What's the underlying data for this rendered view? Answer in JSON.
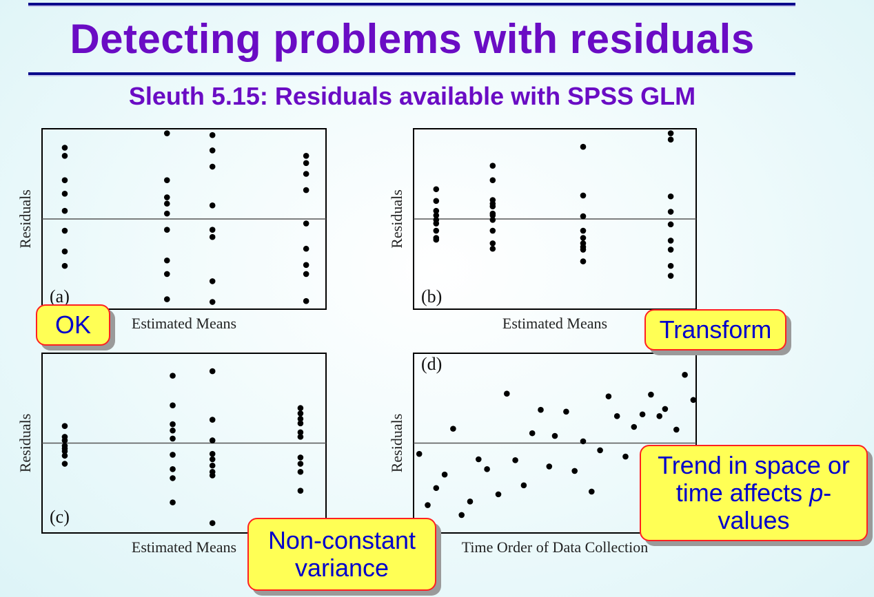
{
  "slide": {
    "title": "Detecting problems with residuals",
    "subtitle": "Sleuth 5.15: Residuals available with SPSS GLM"
  },
  "callouts": {
    "ok": "OK",
    "transform": "Transform",
    "variance_line1": "Non-constant",
    "variance_line2": "variance",
    "trend_line1": "Trend in space or",
    "trend_line2a": "time affects ",
    "trend_line2b": "p",
    "trend_line2c": "-",
    "trend_line3": "values"
  },
  "colors": {
    "title": "#6a0cc4",
    "callout_fill": "#ffff55",
    "callout_border": "#ff2020",
    "callout_text": "#0000cc"
  },
  "chart_data": [
    {
      "type": "scatter",
      "panel": "(a)",
      "xlabel": "Estimated Means",
      "ylabel": "Residuals",
      "xlim": [
        0,
        1
      ],
      "ylim": [
        -1,
        1
      ],
      "reference_line_y": 0,
      "points": [
        [
          0.08,
          0.79
        ],
        [
          0.08,
          0.7
        ],
        [
          0.08,
          0.43
        ],
        [
          0.08,
          0.28
        ],
        [
          0.08,
          0.09
        ],
        [
          0.08,
          -0.13
        ],
        [
          0.08,
          -0.36
        ],
        [
          0.08,
          -0.52
        ],
        [
          0.44,
          0.95
        ],
        [
          0.44,
          0.43
        ],
        [
          0.44,
          0.24
        ],
        [
          0.44,
          0.17
        ],
        [
          0.44,
          0.06
        ],
        [
          0.44,
          -0.12
        ],
        [
          0.44,
          -0.46
        ],
        [
          0.44,
          -0.61
        ],
        [
          0.44,
          -0.89
        ],
        [
          0.6,
          0.93
        ],
        [
          0.6,
          0.76
        ],
        [
          0.6,
          0.58
        ],
        [
          0.6,
          0.15
        ],
        [
          0.6,
          -0.12
        ],
        [
          0.6,
          -0.2
        ],
        [
          0.6,
          -0.69
        ],
        [
          0.6,
          -0.92
        ],
        [
          0.93,
          0.7
        ],
        [
          0.93,
          0.62
        ],
        [
          0.93,
          0.5
        ],
        [
          0.93,
          0.32
        ],
        [
          0.93,
          -0.05
        ],
        [
          0.93,
          -0.33
        ],
        [
          0.93,
          -0.51
        ],
        [
          0.93,
          -0.61
        ],
        [
          0.93,
          -0.91
        ]
      ]
    },
    {
      "type": "scatter",
      "panel": "(b)",
      "xlabel": "Estimated Means",
      "ylabel": "Residuals",
      "xlim": [
        0,
        1
      ],
      "ylim": [
        -1,
        1
      ],
      "reference_line_y": 0,
      "points": [
        [
          0.08,
          0.33
        ],
        [
          0.08,
          0.2
        ],
        [
          0.08,
          0.09
        ],
        [
          0.08,
          0.04
        ],
        [
          0.08,
          -0.01
        ],
        [
          0.08,
          -0.05
        ],
        [
          0.08,
          -0.13
        ],
        [
          0.08,
          -0.21
        ],
        [
          0.08,
          -0.23
        ],
        [
          0.28,
          0.59
        ],
        [
          0.28,
          0.43
        ],
        [
          0.28,
          0.21
        ],
        [
          0.28,
          0.17
        ],
        [
          0.28,
          0.14
        ],
        [
          0.28,
          0.06
        ],
        [
          0.28,
          0.04
        ],
        [
          0.28,
          -0.01
        ],
        [
          0.28,
          -0.13
        ],
        [
          0.28,
          -0.27
        ],
        [
          0.28,
          -0.33
        ],
        [
          0.6,
          0.8
        ],
        [
          0.6,
          0.26
        ],
        [
          0.6,
          0.03
        ],
        [
          0.6,
          -0.13
        ],
        [
          0.6,
          -0.21
        ],
        [
          0.6,
          -0.27
        ],
        [
          0.6,
          -0.31
        ],
        [
          0.6,
          -0.34
        ],
        [
          0.6,
          -0.47
        ],
        [
          0.91,
          0.95
        ],
        [
          0.91,
          0.88
        ],
        [
          0.91,
          0.25
        ],
        [
          0.91,
          0.08
        ],
        [
          0.91,
          -0.06
        ],
        [
          0.91,
          -0.24
        ],
        [
          0.91,
          -0.34
        ],
        [
          0.91,
          -0.52
        ],
        [
          0.91,
          -0.63
        ]
      ]
    },
    {
      "type": "scatter",
      "panel": "(c)",
      "xlabel": "Estimated Means",
      "ylabel": "Residuals",
      "xlim": [
        0,
        1
      ],
      "ylim": [
        -1,
        1
      ],
      "reference_line_y": 0,
      "points": [
        [
          0.08,
          0.19
        ],
        [
          0.08,
          0.07
        ],
        [
          0.08,
          0.03
        ],
        [
          0.08,
          -0.03
        ],
        [
          0.08,
          -0.06
        ],
        [
          0.08,
          -0.09
        ],
        [
          0.08,
          -0.14
        ],
        [
          0.08,
          -0.23
        ],
        [
          0.46,
          0.75
        ],
        [
          0.46,
          0.42
        ],
        [
          0.46,
          0.21
        ],
        [
          0.46,
          0.14
        ],
        [
          0.46,
          0.05
        ],
        [
          0.46,
          -0.13
        ],
        [
          0.46,
          -0.29
        ],
        [
          0.46,
          -0.39
        ],
        [
          0.46,
          -0.66
        ],
        [
          0.6,
          0.8
        ],
        [
          0.6,
          0.26
        ],
        [
          0.6,
          0.03
        ],
        [
          0.6,
          -0.12
        ],
        [
          0.6,
          -0.18
        ],
        [
          0.6,
          -0.25
        ],
        [
          0.6,
          -0.32
        ],
        [
          0.6,
          -0.36
        ],
        [
          0.6,
          -0.89
        ],
        [
          0.91,
          0.39
        ],
        [
          0.91,
          0.33
        ],
        [
          0.91,
          0.27
        ],
        [
          0.91,
          0.22
        ],
        [
          0.91,
          0.12
        ],
        [
          0.91,
          0.07
        ],
        [
          0.91,
          -0.16
        ],
        [
          0.91,
          -0.23
        ],
        [
          0.91,
          -0.32
        ],
        [
          0.91,
          -0.53
        ]
      ]
    },
    {
      "type": "scatter",
      "panel": "(d)",
      "xlabel": "Time Order of Data Collection",
      "ylabel": "Residuals",
      "xlim": [
        0,
        1
      ],
      "ylim": [
        -1,
        1
      ],
      "reference_line_y": 0,
      "points": [
        [
          0.02,
          -0.12
        ],
        [
          0.05,
          -0.69
        ],
        [
          0.08,
          -0.5
        ],
        [
          0.11,
          -0.35
        ],
        [
          0.14,
          0.16
        ],
        [
          0.17,
          -0.8
        ],
        [
          0.2,
          -0.65
        ],
        [
          0.23,
          -0.18
        ],
        [
          0.26,
          -0.29
        ],
        [
          0.3,
          -0.57
        ],
        [
          0.33,
          0.55
        ],
        [
          0.36,
          -0.19
        ],
        [
          0.39,
          -0.47
        ],
        [
          0.42,
          0.11
        ],
        [
          0.45,
          0.37
        ],
        [
          0.48,
          -0.26
        ],
        [
          0.5,
          0.08
        ],
        [
          0.54,
          0.35
        ],
        [
          0.57,
          -0.31
        ],
        [
          0.6,
          0.02
        ],
        [
          0.63,
          -0.54
        ],
        [
          0.66,
          -0.08
        ],
        [
          0.69,
          0.52
        ],
        [
          0.72,
          0.3
        ],
        [
          0.75,
          -0.15
        ],
        [
          0.78,
          0.18
        ],
        [
          0.81,
          0.32
        ],
        [
          0.84,
          0.54
        ],
        [
          0.87,
          0.3
        ],
        [
          0.89,
          0.38
        ],
        [
          0.93,
          0.15
        ],
        [
          0.96,
          0.76
        ],
        [
          0.99,
          0.48
        ]
      ]
    }
  ]
}
